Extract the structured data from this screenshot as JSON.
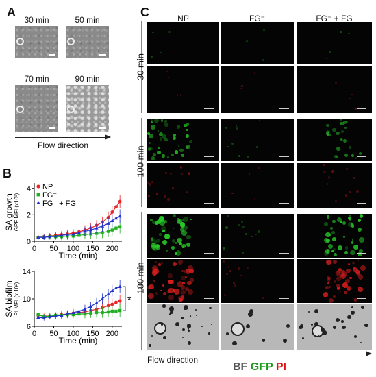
{
  "panels": {
    "a": "A",
    "b": "B",
    "c": "C"
  },
  "panel_a": {
    "times": [
      "30 min",
      "50 min",
      "70 min",
      "90 min"
    ],
    "flow_label": "Flow direction"
  },
  "panel_c": {
    "columns": [
      "NP",
      "FG⁻",
      "FG⁻ + FG"
    ],
    "rows": [
      "30 min",
      "100 min",
      "180 min"
    ],
    "flow_label": "Flow direction",
    "channels": {
      "bf": "BF",
      "gfp": "GFP",
      "pi": "PI",
      "bf_color": "#555555",
      "gfp_color": "#1a9a1a",
      "pi_color": "#e01010"
    }
  },
  "chart_data": [
    {
      "type": "line",
      "ylabel_main": "SA growth",
      "ylabel_sub": "GPF MFI (x10³)",
      "xlabel": "Time (min)",
      "xticks": [
        0,
        50,
        100,
        150,
        200
      ],
      "yticks": [
        0,
        2,
        4
      ],
      "xlim": [
        0,
        225
      ],
      "ylim": [
        0,
        4.4
      ],
      "legend_position": "top-left",
      "x": [
        10,
        25,
        40,
        55,
        70,
        85,
        100,
        115,
        130,
        145,
        160,
        175,
        190,
        200,
        210,
        220
      ],
      "series": [
        {
          "name": "NP",
          "marker": "circle",
          "color": "#e8262a",
          "values": [
            0.3,
            0.35,
            0.4,
            0.45,
            0.5,
            0.55,
            0.62,
            0.72,
            0.85,
            1.0,
            1.2,
            1.45,
            1.8,
            2.2,
            2.6,
            3.0
          ]
        },
        {
          "name": "FG⁻",
          "marker": "square",
          "color": "#22b022",
          "values": [
            0.3,
            0.3,
            0.35,
            0.35,
            0.35,
            0.4,
            0.4,
            0.45,
            0.5,
            0.55,
            0.6,
            0.65,
            0.75,
            0.85,
            1.0,
            1.1
          ]
        },
        {
          "name": "FG⁻ + FG",
          "marker": "triangle",
          "color": "#2233cc",
          "values": [
            0.3,
            0.3,
            0.35,
            0.4,
            0.45,
            0.5,
            0.55,
            0.65,
            0.75,
            0.85,
            1.0,
            1.15,
            1.35,
            1.55,
            1.75,
            1.9
          ]
        }
      ]
    },
    {
      "type": "line",
      "ylabel_main": "SA biofilm",
      "ylabel_sub": "PI MFI (x 10²)",
      "xlabel": "Time (min)",
      "xticks": [
        0,
        50,
        100,
        150,
        200
      ],
      "yticks": [
        6,
        10,
        14
      ],
      "xlim": [
        0,
        225
      ],
      "ylim": [
        6,
        14
      ],
      "annotation": "*",
      "x": [
        10,
        25,
        40,
        55,
        70,
        85,
        100,
        115,
        130,
        145,
        160,
        175,
        190,
        200,
        210,
        220
      ],
      "series": [
        {
          "name": "NP",
          "color": "#e8262a",
          "marker": "circle",
          "values": [
            7.6,
            7.5,
            7.5,
            7.6,
            7.7,
            7.8,
            7.9,
            8.0,
            8.1,
            8.3,
            8.5,
            8.7,
            9.0,
            9.2,
            9.5,
            9.7
          ]
        },
        {
          "name": "FG⁻",
          "color": "#22b022",
          "marker": "square",
          "values": [
            7.7,
            7.4,
            7.5,
            7.6,
            7.6,
            7.7,
            7.7,
            7.8,
            7.8,
            7.9,
            8.0,
            8.0,
            8.1,
            8.2,
            8.2,
            8.3
          ]
        },
        {
          "name": "FG⁻ + FG",
          "color": "#2233cc",
          "marker": "triangle",
          "values": [
            7.3,
            7.2,
            7.4,
            7.5,
            7.6,
            7.8,
            8.0,
            8.2,
            8.5,
            8.9,
            9.4,
            10.0,
            10.7,
            11.2,
            11.6,
            11.8
          ]
        }
      ]
    }
  ]
}
